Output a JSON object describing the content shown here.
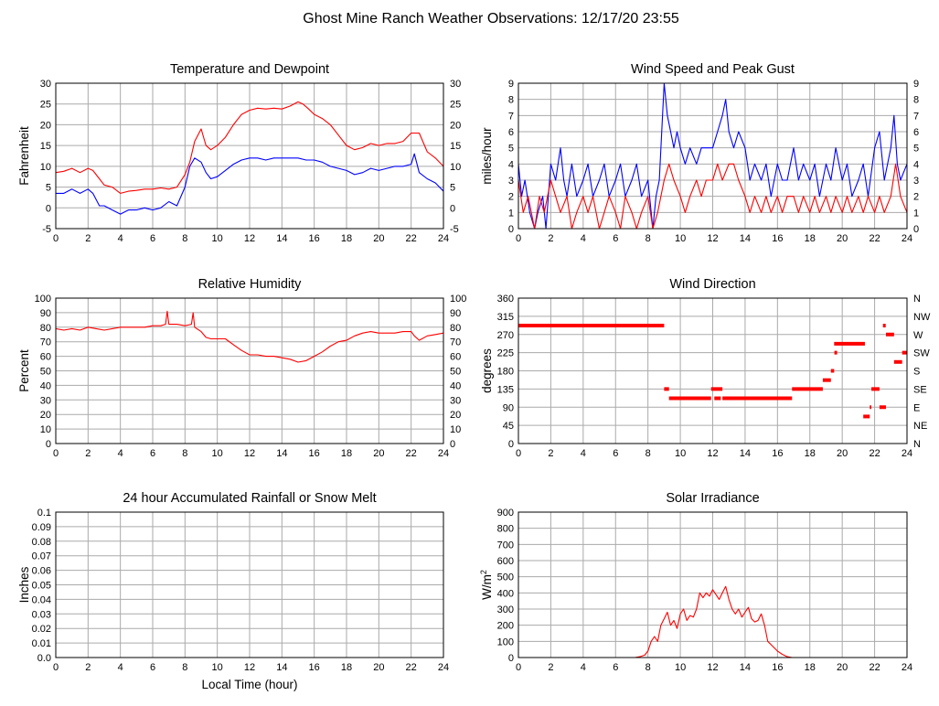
{
  "page_title": "Ghost Mine Ranch Weather Observations: 12/17/20 23:55",
  "x_axis_label": "Local Time (hour)",
  "colors": {
    "red": "#ff0000",
    "blue": "#0000ff",
    "grid": "#aaaaaa",
    "frame": "#000000"
  },
  "chart_data": [
    {
      "id": "temp",
      "type": "line",
      "title": "Temperature and Dewpoint",
      "ylabel": "Fahrenheit",
      "xlim": [
        0,
        24
      ],
      "ylim": [
        -5,
        30
      ],
      "xticks": [
        "0",
        "2",
        "4",
        "6",
        "8",
        "10",
        "12",
        "14",
        "16",
        "18",
        "20",
        "22",
        "24"
      ],
      "yticks": [
        "-5",
        "0",
        "5",
        "10",
        "15",
        "20",
        "25",
        "30"
      ],
      "right_yticks": [
        "-5",
        "0",
        "5",
        "10",
        "15",
        "20",
        "25",
        "30"
      ],
      "grid": true,
      "series": [
        {
          "color": "#ff0000",
          "x": [
            0,
            0.5,
            1,
            1.5,
            2,
            2.3,
            2.7,
            3,
            3.5,
            4,
            4.5,
            5,
            5.5,
            6,
            6.5,
            7,
            7.5,
            8,
            8.3,
            8.6,
            9,
            9.3,
            9.6,
            10,
            10.5,
            11,
            11.5,
            12,
            12.5,
            13,
            13.5,
            14,
            14.5,
            15,
            15.3,
            15.6,
            16,
            16.5,
            17,
            17.5,
            18,
            18.5,
            19,
            19.5,
            20,
            20.5,
            21,
            21.5,
            22,
            22.5,
            23,
            23.5,
            24
          ],
          "y": [
            8.5,
            8.8,
            9.5,
            8.5,
            9.5,
            9,
            7,
            5.5,
            5,
            3.5,
            4,
            4.2,
            4.5,
            4.5,
            4.8,
            4.5,
            5,
            8,
            11,
            16,
            19,
            15,
            14,
            15,
            17,
            20,
            22.5,
            23.5,
            24,
            23.8,
            24,
            23.8,
            24.5,
            25.5,
            25,
            24,
            22.5,
            21.5,
            20,
            17.5,
            15,
            14,
            14.5,
            15.5,
            15,
            15.5,
            15.5,
            16,
            18,
            18,
            13.5,
            12,
            10
          ]
        },
        {
          "color": "#0000ff",
          "x": [
            0,
            0.5,
            1,
            1.5,
            2,
            2.3,
            2.7,
            3,
            3.5,
            4,
            4.5,
            5,
            5.5,
            6,
            6.5,
            7,
            7.5,
            8,
            8.3,
            8.6,
            9,
            9.3,
            9.6,
            10,
            10.5,
            11,
            11.5,
            12,
            12.5,
            13,
            13.5,
            14,
            14.5,
            15,
            15.5,
            16,
            16.5,
            17,
            17.5,
            18,
            18.5,
            19,
            19.5,
            20,
            20.5,
            21,
            21.5,
            22,
            22.2,
            22.5,
            23,
            23.5,
            24
          ],
          "y": [
            3.5,
            3.5,
            4.5,
            3.5,
            4.5,
            3.5,
            0.5,
            0.5,
            -0.5,
            -1.5,
            -0.5,
            -0.5,
            0,
            -0.5,
            0,
            1.5,
            0.5,
            5,
            10,
            12,
            11,
            8.5,
            7,
            7.5,
            9,
            10.5,
            11.5,
            12,
            12,
            11.5,
            12,
            12,
            12,
            12,
            11.5,
            11.5,
            11,
            10,
            9.5,
            9,
            8,
            8.5,
            9.5,
            9,
            9.5,
            10,
            10,
            10.5,
            13,
            8.5,
            7,
            6,
            4
          ]
        }
      ]
    },
    {
      "id": "wind",
      "type": "line",
      "title": "Wind Speed and Peak Gust",
      "ylabel": "miles/hour",
      "xlim": [
        0,
        24
      ],
      "ylim": [
        0,
        9
      ],
      "xticks": [
        "0",
        "2",
        "4",
        "6",
        "8",
        "10",
        "12",
        "14",
        "16",
        "18",
        "20",
        "22",
        "24"
      ],
      "yticks": [
        "0",
        "1",
        "2",
        "3",
        "4",
        "5",
        "6",
        "7",
        "8",
        "9"
      ],
      "right_yticks": [
        "0",
        "1",
        "2",
        "3",
        "4",
        "5",
        "6",
        "7",
        "8",
        "9"
      ],
      "grid": true,
      "series": [
        {
          "color": "#0000ff",
          "x": [
            0,
            0.2,
            0.4,
            0.7,
            1,
            1.2,
            1.5,
            1.7,
            2,
            2.3,
            2.6,
            2.8,
            3,
            3.3,
            3.6,
            4,
            4.3,
            4.6,
            5,
            5.3,
            5.6,
            6,
            6.3,
            6.6,
            7,
            7.3,
            7.6,
            8,
            8.3,
            8.5,
            8.7,
            9,
            9.2,
            9.4,
            9.6,
            9.8,
            10,
            10.3,
            10.6,
            11,
            11.3,
            11.6,
            12,
            12.3,
            12.6,
            12.8,
            13,
            13.3,
            13.6,
            14,
            14.3,
            14.6,
            15,
            15.3,
            15.6,
            16,
            16.3,
            16.6,
            17,
            17.3,
            17.6,
            18,
            18.3,
            18.6,
            19,
            19.3,
            19.6,
            20,
            20.3,
            20.6,
            21,
            21.3,
            21.6,
            22,
            22.3,
            22.6,
            23,
            23.2,
            23.4,
            23.6,
            24
          ],
          "y": [
            4,
            2,
            3,
            1,
            0,
            1,
            2,
            0,
            4,
            3,
            5,
            3,
            2,
            4,
            2,
            3,
            4,
            2,
            3,
            4,
            2,
            3,
            4,
            2,
            3,
            4,
            2,
            3,
            0,
            2,
            3,
            9,
            7,
            6,
            5,
            6,
            5,
            4,
            5,
            4,
            5,
            5,
            5,
            6,
            7,
            8,
            6,
            5,
            6,
            5,
            3,
            4,
            3,
            4,
            2,
            4,
            3,
            3,
            5,
            3,
            4,
            3,
            4,
            2,
            4,
            3,
            5,
            3,
            4,
            2,
            3,
            4,
            2,
            5,
            6,
            3,
            5,
            7,
            4,
            3,
            4
          ]
        },
        {
          "color": "#ff0000",
          "x": [
            0,
            0.3,
            0.6,
            1,
            1.3,
            1.6,
            2,
            2.3,
            2.6,
            3,
            3.3,
            3.6,
            4,
            4.3,
            4.6,
            5,
            5.3,
            5.6,
            6,
            6.3,
            6.6,
            7,
            7.3,
            7.6,
            8,
            8.3,
            8.6,
            9,
            9.3,
            9.6,
            10,
            10.3,
            10.6,
            11,
            11.3,
            11.6,
            12,
            12.3,
            12.6,
            13,
            13.3,
            13.6,
            14,
            14.3,
            14.6,
            15,
            15.3,
            15.6,
            16,
            16.3,
            16.6,
            17,
            17.3,
            17.6,
            18,
            18.3,
            18.6,
            19,
            19.3,
            19.6,
            20,
            20.3,
            20.6,
            21,
            21.3,
            21.6,
            22,
            22.3,
            22.6,
            23,
            23.3,
            23.6,
            24
          ],
          "y": [
            3,
            1,
            2,
            0,
            2,
            1,
            3,
            2,
            1,
            2,
            0,
            1,
            2,
            1,
            2,
            0,
            1,
            2,
            1,
            0,
            2,
            1,
            0,
            1,
            2,
            0,
            1,
            3,
            4,
            3,
            2,
            1,
            2,
            3,
            2,
            3,
            3,
            4,
            3,
            4,
            4,
            3,
            2,
            1,
            2,
            1,
            2,
            1,
            2,
            1,
            2,
            2,
            1,
            2,
            1,
            2,
            1,
            2,
            1,
            2,
            1,
            2,
            1,
            2,
            1,
            2,
            1,
            2,
            1,
            2,
            4,
            2,
            1
          ]
        }
      ]
    },
    {
      "id": "rh",
      "type": "line",
      "title": "Relative Humidity",
      "ylabel": "Percent",
      "xlim": [
        0,
        24
      ],
      "ylim": [
        0,
        100
      ],
      "xticks": [
        "0",
        "2",
        "4",
        "6",
        "8",
        "10",
        "12",
        "14",
        "16",
        "18",
        "20",
        "22",
        "24"
      ],
      "yticks": [
        "0",
        "10",
        "20",
        "30",
        "40",
        "50",
        "60",
        "70",
        "80",
        "90",
        "100"
      ],
      "right_yticks": [
        "0",
        "10",
        "20",
        "30",
        "40",
        "50",
        "60",
        "70",
        "80",
        "90",
        "100"
      ],
      "grid": true,
      "series": [
        {
          "color": "#ff0000",
          "x": [
            0,
            0.5,
            1,
            1.5,
            2,
            2.5,
            3,
            3.5,
            4,
            4.5,
            5,
            5.5,
            6,
            6.5,
            6.8,
            6.9,
            7,
            7.5,
            8,
            8.4,
            8.5,
            8.6,
            9,
            9.3,
            9.6,
            10,
            10.5,
            11,
            11.5,
            12,
            12.5,
            13,
            13.5,
            14,
            14.5,
            15,
            15.5,
            16,
            16.5,
            17,
            17.5,
            18,
            18.5,
            19,
            19.5,
            20,
            20.5,
            21,
            21.5,
            22,
            22.2,
            22.5,
            23,
            23.5,
            24
          ],
          "y": [
            79,
            78,
            79,
            78,
            80,
            79,
            78,
            79,
            80,
            80,
            80,
            80,
            81,
            81,
            82,
            91,
            82,
            82,
            81,
            82,
            90,
            80,
            77,
            73,
            72,
            72,
            72,
            68,
            64,
            61,
            61,
            60,
            60,
            59,
            58,
            56,
            57,
            60,
            63,
            67,
            70,
            71,
            74,
            76,
            77,
            76,
            76,
            76,
            77,
            77,
            74,
            71,
            74,
            75,
            76
          ]
        }
      ]
    },
    {
      "id": "wdir",
      "type": "scatter",
      "title": "Wind Direction",
      "ylabel": "degrees",
      "xlim": [
        0,
        24
      ],
      "ylim": [
        0,
        360
      ],
      "xticks": [
        "0",
        "2",
        "4",
        "6",
        "8",
        "10",
        "12",
        "14",
        "16",
        "18",
        "20",
        "22",
        "24"
      ],
      "yticks": [
        "0",
        "45",
        "90",
        "135",
        "180",
        "225",
        "270",
        "315",
        "360"
      ],
      "right_yticks": [
        "N",
        "NE",
        "E",
        "SE",
        "S",
        "SW",
        "W",
        "NW",
        "N"
      ],
      "grid": true,
      "segments": [
        {
          "x0": 0,
          "x1": 9.0,
          "y": 292
        },
        {
          "x0": 9.0,
          "x1": 9.3,
          "y": 135
        },
        {
          "x0": 9.3,
          "x1": 11.9,
          "y": 112
        },
        {
          "x0": 11.9,
          "x1": 12.6,
          "y": 135
        },
        {
          "x0": 12.1,
          "x1": 12.5,
          "y": 112
        },
        {
          "x0": 12.6,
          "x1": 16.9,
          "y": 112
        },
        {
          "x0": 16.9,
          "x1": 18.8,
          "y": 135
        },
        {
          "x0": 18.8,
          "x1": 19.3,
          "y": 157
        },
        {
          "x0": 19.3,
          "x1": 19.5,
          "y": 180
        },
        {
          "x0": 19.5,
          "x1": 21.4,
          "y": 247
        },
        {
          "x0": 21.3,
          "x1": 21.7,
          "y": 67
        },
        {
          "x0": 21.7,
          "x1": 21.8,
          "y": 90
        },
        {
          "x0": 21.8,
          "x1": 22.3,
          "y": 135
        },
        {
          "x0": 22.3,
          "x1": 22.7,
          "y": 90
        },
        {
          "x0": 22.7,
          "x1": 23.2,
          "y": 270
        },
        {
          "x0": 23.2,
          "x1": 23.7,
          "y": 202
        },
        {
          "x0": 23.7,
          "x1": 24,
          "y": 225
        }
      ],
      "points": [
        {
          "x": 19.6,
          "y": 225
        },
        {
          "x": 22.6,
          "y": 292
        }
      ]
    },
    {
      "id": "rain",
      "type": "line",
      "title": "24 hour Accumulated Rainfall or Snow Melt",
      "ylabel": "Inches",
      "xlim": [
        0,
        24
      ],
      "ylim": [
        0,
        0.1
      ],
      "xticks": [
        "0",
        "2",
        "4",
        "6",
        "8",
        "10",
        "12",
        "14",
        "16",
        "18",
        "20",
        "22",
        "24"
      ],
      "yticks": [
        "0.0",
        "0.01",
        "0.02",
        "0.03",
        "0.04",
        "0.05",
        "0.06",
        "0.07",
        "0.08",
        "0.09",
        "0.1"
      ],
      "right_yticks": [],
      "grid": true,
      "series": [
        {
          "color": "#ff0000",
          "x": [
            0,
            24
          ],
          "y": [
            0,
            0
          ]
        }
      ]
    },
    {
      "id": "solar",
      "type": "line",
      "title": "Solar Irradiance",
      "ylabel": "W/m",
      "ylabel_sup": "2",
      "xlim": [
        0,
        24
      ],
      "ylim": [
        0,
        900
      ],
      "xticks": [
        "0",
        "2",
        "4",
        "6",
        "8",
        "10",
        "12",
        "14",
        "16",
        "18",
        "20",
        "22",
        "24"
      ],
      "yticks": [
        "0",
        "100",
        "200",
        "300",
        "400",
        "500",
        "600",
        "700",
        "800",
        "900"
      ],
      "right_yticks": [],
      "grid": true,
      "series": [
        {
          "color": "#ff0000",
          "x": [
            0,
            7.2,
            7.5,
            7.8,
            8,
            8.2,
            8.4,
            8.6,
            8.8,
            9,
            9.2,
            9.4,
            9.6,
            9.8,
            10,
            10.2,
            10.4,
            10.6,
            10.8,
            11,
            11.2,
            11.4,
            11.6,
            11.8,
            12,
            12.2,
            12.4,
            12.6,
            12.8,
            13,
            13.2,
            13.4,
            13.6,
            13.8,
            14,
            14.2,
            14.4,
            14.6,
            14.8,
            15,
            15.2,
            15.4,
            15.6,
            15.8,
            16,
            16.3,
            16.6,
            16.9,
            24
          ],
          "y": [
            0,
            0,
            5,
            15,
            40,
            100,
            130,
            100,
            200,
            240,
            280,
            200,
            230,
            180,
            270,
            300,
            230,
            260,
            250,
            300,
            400,
            370,
            400,
            380,
            420,
            390,
            360,
            400,
            440,
            360,
            300,
            270,
            300,
            250,
            280,
            310,
            240,
            220,
            230,
            270,
            200,
            100,
            80,
            60,
            40,
            20,
            5,
            0,
            0
          ]
        }
      ]
    }
  ]
}
